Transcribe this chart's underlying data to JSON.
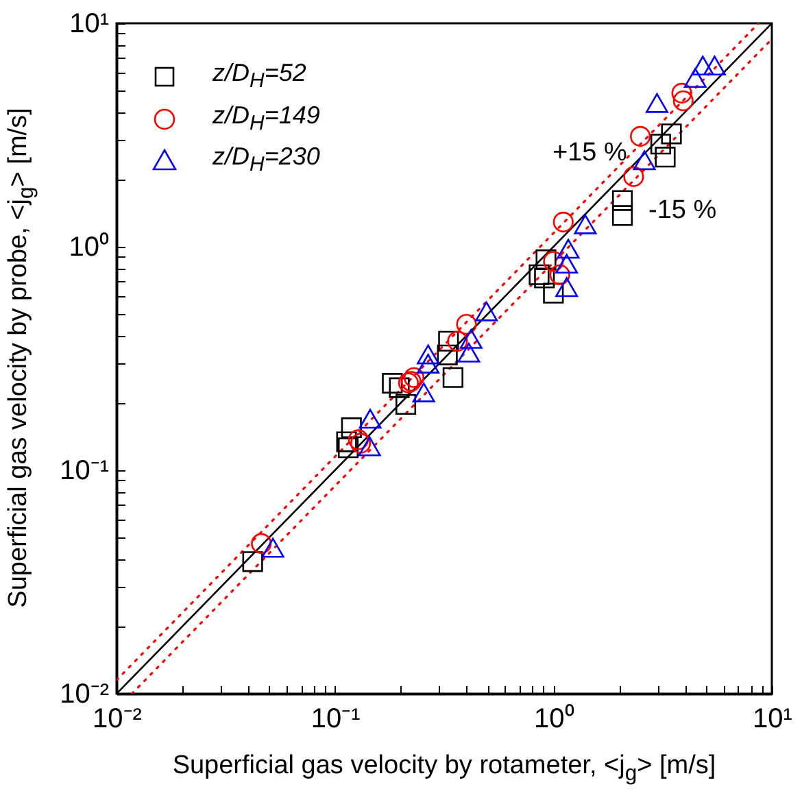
{
  "chart_data": {
    "type": "scatter",
    "xlabel": "Superficial gas velocity by rotameter, <j$_{g}$> [m/s]",
    "ylabel": "Superficial gas velocity by probe, <j$_{g}$> [m/s]",
    "log": "xy",
    "grid": false,
    "legend": "top left",
    "xlim": [
      0.01,
      10
    ],
    "ylim": [
      0.01,
      10
    ],
    "xticks": [
      {
        "value": 0.01,
        "label": "10⁻²"
      },
      {
        "value": 0.02,
        "label": null
      },
      {
        "value": 0.03,
        "label": null
      },
      {
        "value": 0.04,
        "label": null
      },
      {
        "value": 0.05,
        "label": null
      },
      {
        "value": 0.06,
        "label": null
      },
      {
        "value": 0.07,
        "label": null
      },
      {
        "value": 0.08,
        "label": null
      },
      {
        "value": 0.09,
        "label": null
      },
      {
        "value": 0.1,
        "label": "10⁻¹"
      },
      {
        "value": 0.2,
        "label": null
      },
      {
        "value": 0.3,
        "label": null
      },
      {
        "value": 0.4,
        "label": null
      },
      {
        "value": 0.5,
        "label": null
      },
      {
        "value": 0.6,
        "label": null
      },
      {
        "value": 0.7,
        "label": null
      },
      {
        "value": 0.8,
        "label": null
      },
      {
        "value": 0.9,
        "label": null
      },
      {
        "value": 1,
        "label": "10⁰"
      },
      {
        "value": 2,
        "label": null
      },
      {
        "value": 3,
        "label": null
      },
      {
        "value": 4,
        "label": null
      },
      {
        "value": 5,
        "label": null
      },
      {
        "value": 6,
        "label": null
      },
      {
        "value": 7,
        "label": null
      },
      {
        "value": 8,
        "label": null
      },
      {
        "value": 9,
        "label": null
      },
      {
        "value": 10,
        "label": "10¹"
      }
    ],
    "yticks": [
      {
        "value": 0.01,
        "label": "10⁻²"
      },
      {
        "value": 0.02,
        "label": null
      },
      {
        "value": 0.03,
        "label": null
      },
      {
        "value": 0.04,
        "label": null
      },
      {
        "value": 0.05,
        "label": null
      },
      {
        "value": 0.06,
        "label": null
      },
      {
        "value": 0.07,
        "label": null
      },
      {
        "value": 0.08,
        "label": null
      },
      {
        "value": 0.09,
        "label": null
      },
      {
        "value": 0.1,
        "label": "10⁻¹"
      },
      {
        "value": 0.2,
        "label": null
      },
      {
        "value": 0.3,
        "label": null
      },
      {
        "value": 0.4,
        "label": null
      },
      {
        "value": 0.5,
        "label": null
      },
      {
        "value": 0.6,
        "label": null
      },
      {
        "value": 0.7,
        "label": null
      },
      {
        "value": 0.8,
        "label": null
      },
      {
        "value": 0.9,
        "label": null
      },
      {
        "value": 1,
        "label": "10⁰"
      },
      {
        "value": 2,
        "label": null
      },
      {
        "value": 3,
        "label": null
      },
      {
        "value": 4,
        "label": null
      },
      {
        "value": 5,
        "label": null
      },
      {
        "value": 6,
        "label": null
      },
      {
        "value": 7,
        "label": null
      },
      {
        "value": 8,
        "label": null
      },
      {
        "value": 9,
        "label": null
      },
      {
        "value": 10,
        "label": "10¹"
      }
    ],
    "annotations": [
      "+15 %",
      "-15 %"
    ],
    "series": [
      {
        "type": "line",
        "color": "#000000",
        "line_style": "solid",
        "marker": "none",
        "x": [
          0.01,
          10
        ],
        "values": [
          0.01,
          10
        ]
      },
      {
        "type": "line",
        "color": "#ff0000",
        "line_style": "dotted",
        "marker": "none",
        "x": [
          0.01,
          8.696
        ],
        "values": [
          0.0115,
          10
        ]
      },
      {
        "type": "line",
        "color": "#ff0000",
        "line_style": "dotted",
        "marker": "none",
        "x": [
          0.01176,
          10
        ],
        "values": [
          0.01,
          8.5
        ]
      },
      {
        "name": "z/D$_{H}$=52",
        "color": "#000000",
        "marker": "square",
        "x": [
          0.042,
          0.119,
          0.113,
          0.115,
          0.183,
          0.197,
          0.211,
          0.347,
          0.327,
          0.331,
          0.925,
          0.86,
          0.91,
          1.0,
          2.07,
          2.07,
          3.1,
          3.47,
          3.25
        ],
        "values": [
          0.039,
          0.155,
          0.134,
          0.126,
          0.245,
          0.234,
          0.197,
          0.26,
          0.328,
          0.378,
          0.875,
          0.75,
          0.725,
          0.62,
          1.61,
          1.38,
          2.88,
          3.2,
          2.52
        ]
      },
      {
        "name": "z/D$_{H}$=149",
        "color": "#ff0000",
        "marker": "circle",
        "x": [
          0.046,
          0.128,
          0.131,
          0.223,
          0.23,
          0.217,
          0.364,
          0.4,
          1.0,
          1.07,
          1.11,
          2.33,
          2.5,
          3.87,
          3.93
        ],
        "values": [
          0.047,
          0.137,
          0.132,
          0.25,
          0.26,
          0.246,
          0.378,
          0.45,
          0.86,
          0.75,
          1.29,
          2.06,
          3.12,
          4.87,
          4.5
        ]
      },
      {
        "name": "z/D$_{H}$=230",
        "color": "#0000ff",
        "marker": "triangle",
        "x": [
          0.052,
          0.145,
          0.144,
          0.255,
          0.267,
          0.267,
          0.41,
          0.42,
          0.494,
          1.17,
          1.15,
          1.15,
          1.4,
          2.61,
          2.98,
          4.46,
          4.83,
          5.47
        ],
        "values": [
          0.045,
          0.17,
          0.128,
          0.223,
          0.3,
          0.33,
          0.336,
          0.387,
          0.514,
          0.98,
          0.84,
          0.66,
          1.26,
          2.44,
          4.4,
          5.7,
          6.47,
          6.47
        ]
      }
    ]
  }
}
